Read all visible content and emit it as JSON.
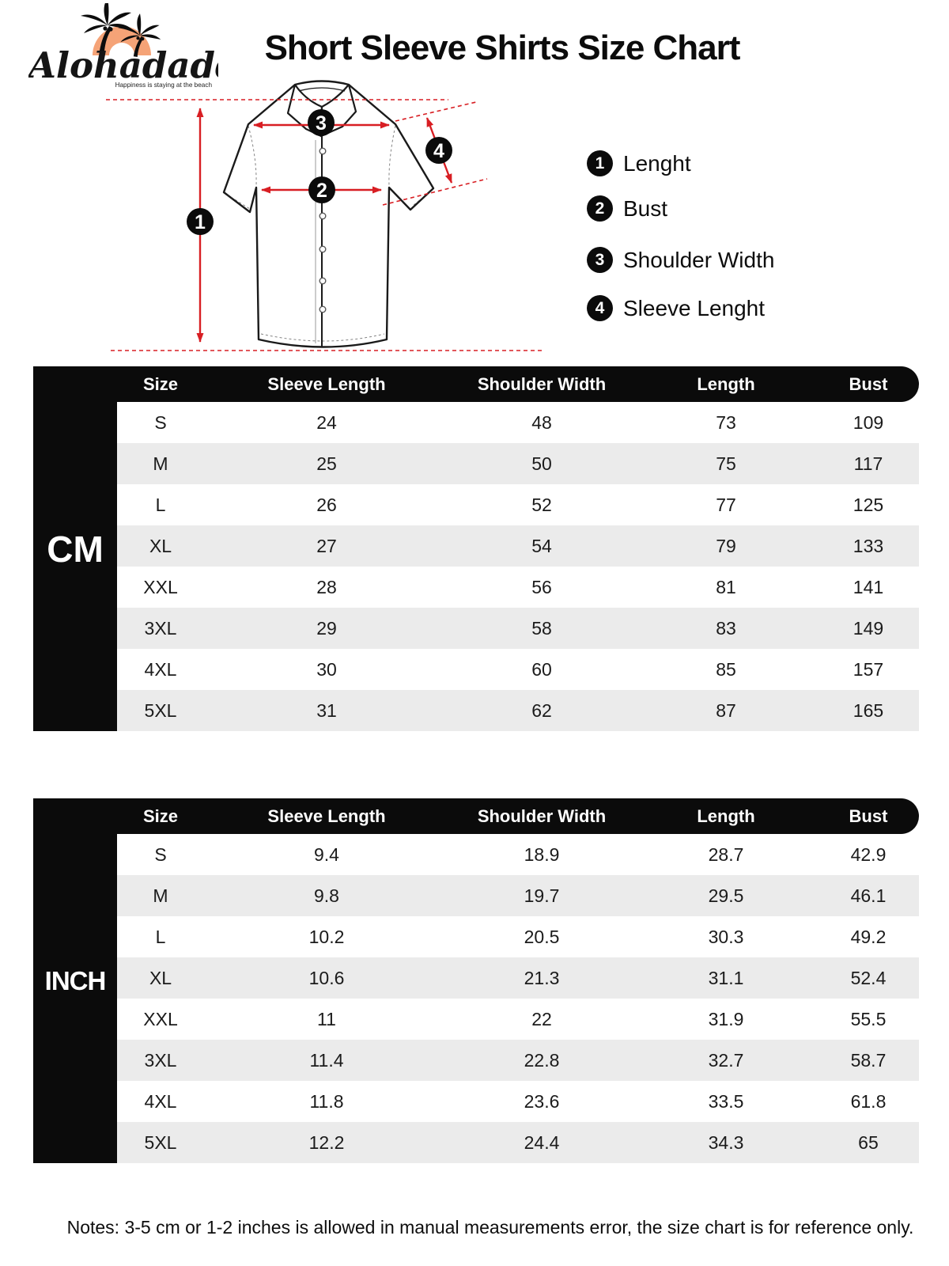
{
  "logo": {
    "brand": "Alohadaddy",
    "tagline": "Happiness is staying at the beach",
    "arch_color": "#F5A377"
  },
  "title": "Short Sleeve Shirts Size Chart",
  "diagram": {
    "arrow_color": "#D81E23",
    "legend": [
      {
        "num": "1",
        "label": "Lenght"
      },
      {
        "num": "2",
        "label": "Bust"
      },
      {
        "num": "3",
        "label": "Shoulder Width"
      },
      {
        "num": "4",
        "label": "Sleeve Lenght"
      }
    ]
  },
  "tables": [
    {
      "unit": "CM",
      "columns": [
        "Size",
        "Sleeve Length",
        "Shoulder Width",
        "Length",
        "Bust"
      ],
      "rows": [
        [
          "S",
          "24",
          "48",
          "73",
          "109"
        ],
        [
          "M",
          "25",
          "50",
          "75",
          "117"
        ],
        [
          "L",
          "26",
          "52",
          "77",
          "125"
        ],
        [
          "XL",
          "27",
          "54",
          "79",
          "133"
        ],
        [
          "XXL",
          "28",
          "56",
          "81",
          "141"
        ],
        [
          "3XL",
          "29",
          "58",
          "83",
          "149"
        ],
        [
          "4XL",
          "30",
          "60",
          "85",
          "157"
        ],
        [
          "5XL",
          "31",
          "62",
          "87",
          "165"
        ]
      ]
    },
    {
      "unit": "INCH",
      "columns": [
        "Size",
        "Sleeve Length",
        "Shoulder Width",
        "Length",
        "Bust"
      ],
      "rows": [
        [
          "S",
          "9.4",
          "18.9",
          "28.7",
          "42.9"
        ],
        [
          "M",
          "9.8",
          "19.7",
          "29.5",
          "46.1"
        ],
        [
          "L",
          "10.2",
          "20.5",
          "30.3",
          "49.2"
        ],
        [
          "XL",
          "10.6",
          "21.3",
          "31.1",
          "52.4"
        ],
        [
          "XXL",
          "11",
          "22",
          "31.9",
          "55.5"
        ],
        [
          "3XL",
          "11.4",
          "22.8",
          "32.7",
          "58.7"
        ],
        [
          "4XL",
          "11.8",
          "23.6",
          "33.5",
          "61.8"
        ],
        [
          "5XL",
          "12.2",
          "24.4",
          "34.3",
          "65"
        ]
      ]
    }
  ],
  "notes": "Notes: 3-5 cm or 1-2 inches is allowed in manual measurements error, the size chart is for reference only."
}
